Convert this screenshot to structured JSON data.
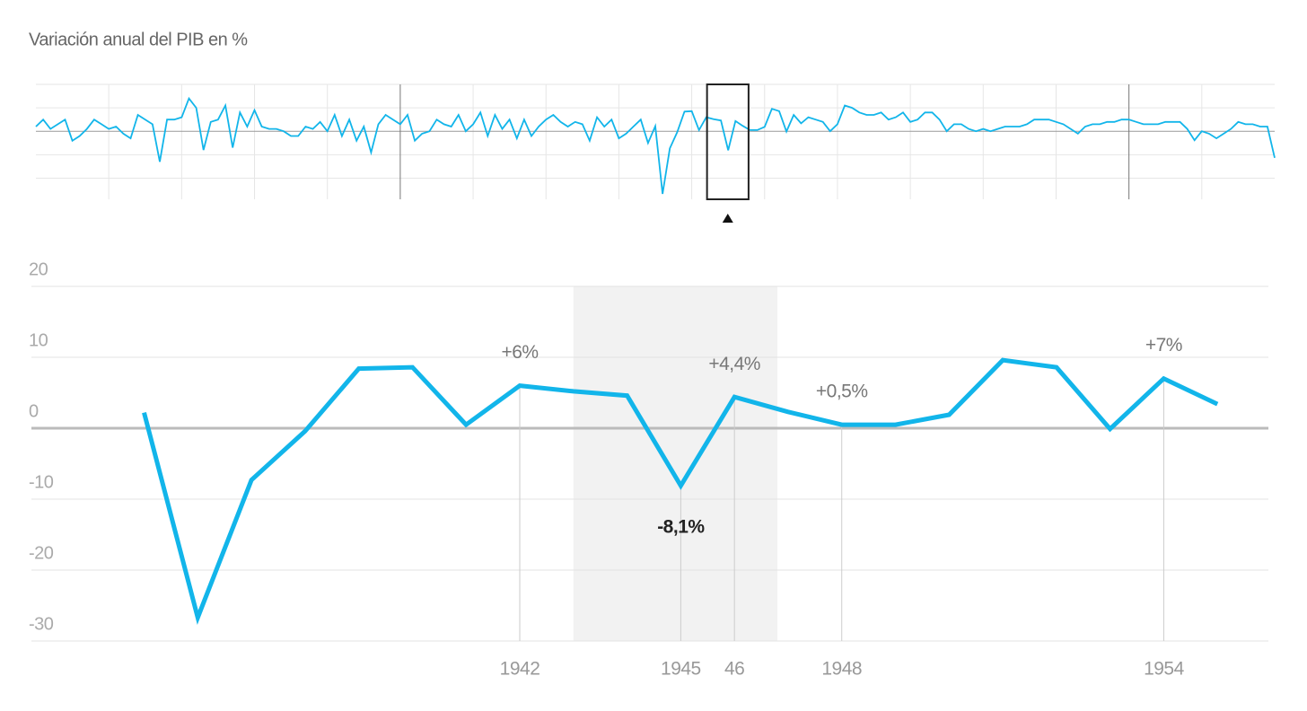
{
  "chart_data": [
    {
      "type": "line",
      "title": "Variación anual del PIB en %",
      "color": "#12b5ea",
      "x": [
        1850,
        1851,
        1852,
        1853,
        1854,
        1855,
        1856,
        1857,
        1858,
        1859,
        1860,
        1861,
        1862,
        1863,
        1864,
        1865,
        1866,
        1867,
        1868,
        1869,
        1870,
        1871,
        1872,
        1873,
        1874,
        1875,
        1876,
        1877,
        1878,
        1879,
        1880,
        1881,
        1882,
        1883,
        1884,
        1885,
        1886,
        1887,
        1888,
        1889,
        1890,
        1891,
        1892,
        1893,
        1894,
        1895,
        1896,
        1897,
        1898,
        1899,
        1900,
        1901,
        1902,
        1903,
        1904,
        1905,
        1906,
        1907,
        1908,
        1909,
        1910,
        1911,
        1912,
        1913,
        1914,
        1915,
        1916,
        1917,
        1918,
        1919,
        1920,
        1921,
        1922,
        1923,
        1924,
        1925,
        1926,
        1927,
        1928,
        1929,
        1930,
        1931,
        1932,
        1933,
        1934,
        1935,
        1936,
        1937,
        1938,
        1939,
        1940,
        1941,
        1942,
        1943,
        1944,
        1945,
        1946,
        1947,
        1948,
        1949,
        1950,
        1951,
        1952,
        1953,
        1954,
        1955,
        1956,
        1957,
        1958,
        1959,
        1960,
        1961,
        1962,
        1963,
        1964,
        1965,
        1966,
        1967,
        1968,
        1969,
        1970,
        1971,
        1972,
        1973,
        1974,
        1975,
        1976,
        1977,
        1978,
        1979,
        1980,
        1981,
        1982,
        1983,
        1984,
        1985,
        1986,
        1987,
        1988,
        1989,
        1990,
        1991,
        1992,
        1993,
        1994,
        1995,
        1996,
        1997,
        1998,
        1999,
        2000,
        2001,
        2002,
        2003,
        2004,
        2005,
        2006,
        2007,
        2008,
        2009,
        2010,
        2011,
        2012,
        2013,
        2014,
        2015,
        2016,
        2017,
        2018,
        2019,
        2020
      ],
      "values": [
        2,
        5,
        1,
        3,
        5,
        -4,
        -2,
        1,
        5,
        3,
        1,
        2,
        -1,
        -3,
        7,
        5,
        3,
        -13,
        5,
        5,
        6,
        14,
        10,
        -8,
        4,
        5,
        11,
        -7,
        8,
        2,
        9,
        2,
        1,
        1,
        0,
        -2,
        -2,
        2,
        1,
        4,
        0,
        7,
        -2,
        5,
        -4,
        2,
        -9,
        3,
        7,
        5,
        3,
        7,
        -4,
        -1,
        0,
        5,
        3,
        2,
        7,
        0,
        3,
        8,
        -2,
        7,
        1,
        5,
        -3,
        5,
        -2,
        2,
        5,
        7,
        4,
        2,
        4,
        3,
        -4,
        6,
        2,
        5,
        -3,
        -1,
        2,
        5,
        -5,
        2.2,
        -26.7,
        -7.3,
        -0.4,
        8.4,
        8.6,
        0.5,
        6,
        5.2,
        4.6,
        -8.1,
        4.4,
        2.3,
        0.5,
        0.5,
        1.9,
        9.6,
        8.6,
        -0.1,
        7,
        3.4,
        6,
        5,
        4,
        0,
        3,
        11,
        10,
        8,
        7,
        7,
        8,
        5,
        6,
        8,
        4,
        5,
        8,
        8,
        5,
        0,
        3,
        3,
        1,
        0,
        1,
        0,
        1,
        2,
        2,
        2,
        3,
        5,
        5,
        5,
        4,
        3,
        1,
        -1,
        2,
        3,
        3,
        4,
        4,
        5,
        5,
        4,
        3,
        3,
        3,
        4,
        4,
        4,
        1,
        -3.8,
        0,
        -1,
        -3,
        -1,
        1,
        4,
        3,
        3,
        2,
        2,
        -11.3
      ],
      "xlim": [
        1850,
        2020
      ],
      "ylim": [
        -29,
        20
      ],
      "yticks": [
        -20,
        -10,
        0,
        10,
        20
      ],
      "xgrid": [
        1860,
        1870,
        1880,
        1890,
        1910,
        1920,
        1930,
        1940,
        1950,
        1960,
        1970,
        1980,
        1990,
        2010
      ],
      "xgrid_major": [
        1900,
        2000
      ],
      "brush": [
        1942.1,
        1947.8
      ]
    },
    {
      "type": "line",
      "color": "#12b5ea",
      "x": [
        1935,
        1936,
        1937,
        1938,
        1939,
        1940,
        1941,
        1942,
        1943,
        1944,
        1945,
        1946,
        1947,
        1948,
        1949,
        1950,
        1951,
        1952,
        1953,
        1954,
        1955
      ],
      "values": [
        2.2,
        -26.7,
        -7.3,
        -0.4,
        8.4,
        8.6,
        0.5,
        6,
        5.2,
        4.6,
        -8.1,
        4.4,
        2.3,
        0.5,
        0.5,
        1.9,
        9.6,
        8.6,
        -0.1,
        7,
        3.4
      ],
      "value_labels": [
        null,
        null,
        null,
        null,
        null,
        null,
        null,
        "+6%",
        null,
        null,
        "-8,1%",
        "+4,4%",
        null,
        "+0,5%",
        null,
        null,
        null,
        null,
        null,
        "+7%",
        null
      ],
      "bold_labels": [
        1945
      ],
      "xlim": [
        1932.9,
        1955.95
      ],
      "ylim": [
        -30,
        20
      ],
      "xticks": [
        1942,
        1945,
        {
          "value": 1946,
          "label": "46"
        },
        1948,
        1954
      ],
      "yticks": [
        -30,
        -20,
        -10,
        0,
        10,
        20
      ],
      "highlight": [
        1943,
        1946.8
      ]
    }
  ]
}
